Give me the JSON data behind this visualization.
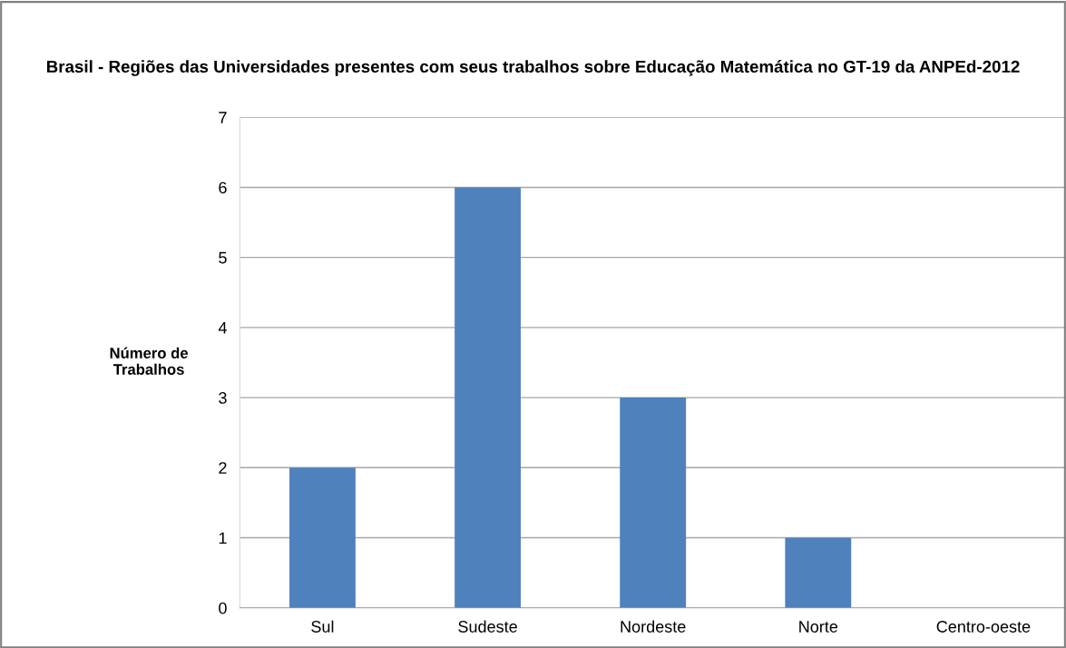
{
  "chart_data": {
    "type": "bar",
    "title": "Brasil - Regiões das Universidades presentes com seus trabalhos sobre Educação Matemática no GT-19 da ANPEd-2012",
    "ylabel": "Número de\nTrabalhos",
    "categories": [
      "Sul",
      "Sudeste",
      "Nordeste",
      "Norte",
      "Centro-oeste"
    ],
    "values": [
      2,
      6,
      3,
      1,
      0
    ],
    "color": "#4f81bd",
    "ylim": [
      0,
      7
    ],
    "yticks": [
      0,
      1,
      2,
      3,
      4,
      5,
      6,
      7
    ],
    "grid": "y"
  }
}
